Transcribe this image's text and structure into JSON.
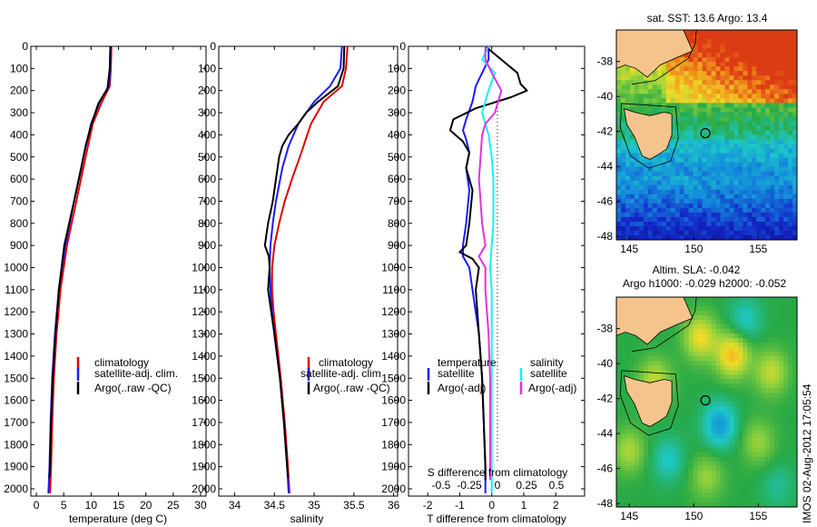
{
  "colors": {
    "climatology": "#e00000",
    "satellite": "#1a1aff",
    "argo": "#000000",
    "s_satellite": "#19f0f0",
    "s_argo": "#e032e0",
    "land": "#f5c48c"
  },
  "stamp": "IMOS 02-Aug-2012 17:05:54",
  "chart_data": [
    {
      "type": "line",
      "id": "temperature",
      "xlabel": "temperature (deg C)",
      "ylabel": "",
      "xlim": [
        -1,
        31
      ],
      "ylim": [
        0,
        2050
      ],
      "x_ticks": [
        0,
        5,
        10,
        15,
        20,
        25,
        30
      ],
      "y_ticks": [
        0,
        100,
        200,
        300,
        400,
        500,
        600,
        700,
        800,
        900,
        1000,
        1100,
        1200,
        1300,
        1400,
        1500,
        1600,
        1700,
        1800,
        1900,
        2000
      ],
      "legend": [
        "climatology",
        "satellite-adj. clim.",
        "Argo(..raw -QC)"
      ],
      "series": [
        {
          "name": "climatology",
          "depth": [
            0,
            100,
            180,
            250,
            350,
            500,
            700,
            900,
            1100,
            1300,
            1500,
            1700,
            1900,
            2020
          ],
          "values": [
            13.7,
            13.6,
            13.4,
            12.0,
            10.3,
            9.0,
            7.3,
            5.6,
            4.4,
            3.7,
            3.2,
            2.9,
            2.7,
            2.5
          ]
        },
        {
          "name": "satellite-adj. clim.",
          "depth": [
            0,
            100,
            180,
            250,
            350,
            500,
            700,
            900,
            1100,
            1300,
            1500,
            1700,
            1900,
            2020
          ],
          "values": [
            13.6,
            13.5,
            13.3,
            11.6,
            10.0,
            8.6,
            6.9,
            5.3,
            4.1,
            3.4,
            2.9,
            2.6,
            2.4,
            2.2
          ]
        },
        {
          "name": "Argo(..raw -QC)",
          "depth": [
            0,
            100,
            190,
            260,
            350,
            450,
            550,
            700,
            900,
            1000,
            1100,
            1300,
            1500,
            1700,
            1900,
            1950
          ],
          "values": [
            13.5,
            13.4,
            13.0,
            11.3,
            10.1,
            9.0,
            8.2,
            6.9,
            5.1,
            4.6,
            4.1,
            3.5,
            3.0,
            2.7,
            2.5,
            2.4
          ]
        }
      ]
    },
    {
      "type": "line",
      "id": "salinity",
      "xlabel": "salinity",
      "ylabel": "",
      "xlim": [
        33.8,
        36.05
      ],
      "ylim": [
        0,
        2050
      ],
      "x_ticks": [
        34,
        34.5,
        35,
        35.5,
        36
      ],
      "legend": [
        "climatology",
        "satellite-adj. clim",
        "Argo(..raw -QC)"
      ],
      "series": [
        {
          "name": "climatology",
          "depth": [
            0,
            100,
            180,
            250,
            350,
            500,
            600,
            700,
            800,
            900,
            1000,
            1100,
            1200,
            1300,
            1500,
            1700,
            1900,
            2020
          ],
          "values": [
            35.42,
            35.4,
            35.35,
            35.12,
            34.96,
            34.82,
            34.72,
            34.63,
            34.56,
            34.5,
            34.47,
            34.47,
            34.49,
            34.52,
            34.58,
            34.63,
            34.67,
            34.69
          ]
        },
        {
          "name": "satellite-adj. clim",
          "depth": [
            0,
            100,
            180,
            250,
            350,
            450,
            550,
            700,
            800,
            900,
            1000,
            1100,
            1200,
            1300,
            1500,
            1700,
            1900,
            2020
          ],
          "values": [
            35.35,
            35.33,
            35.2,
            35.0,
            34.8,
            34.68,
            34.6,
            34.52,
            34.48,
            34.45,
            34.44,
            34.45,
            34.47,
            34.5,
            34.57,
            34.62,
            34.66,
            34.68
          ]
        },
        {
          "name": "Argo(..raw -QC)",
          "depth": [
            0,
            100,
            180,
            250,
            300,
            350,
            400,
            450,
            500,
            600,
            700,
            800,
            850,
            900,
            950,
            1000,
            1100,
            1200,
            1300,
            1500,
            1700,
            1900,
            1950
          ],
          "values": [
            35.38,
            35.37,
            35.3,
            35.05,
            34.9,
            34.8,
            34.68,
            34.6,
            34.56,
            34.52,
            34.48,
            34.42,
            34.4,
            34.38,
            34.43,
            34.44,
            34.42,
            34.46,
            34.5,
            34.57,
            34.62,
            34.66,
            34.67
          ]
        }
      ]
    },
    {
      "type": "line",
      "id": "difference",
      "xlabel": "T difference from climatology",
      "xlabel_top": "S difference from climatology",
      "xlim": [
        -2.6,
        2.9
      ],
      "ylim": [
        0,
        2050
      ],
      "x_ticks": [
        -2,
        -1,
        0,
        1,
        2
      ],
      "s_ticks": [
        "-0.5",
        "-0.25",
        "0",
        "0.25",
        "0.5"
      ],
      "legend_left_title": "temperature",
      "legend_right_title": "salinity",
      "legend_left": [
        "satellite",
        "Argo(-adj)"
      ],
      "legend_right": [
        "satellite",
        "Argo(-adj)"
      ],
      "series": [
        {
          "name": "T satellite",
          "depth": [
            0,
            60,
            120,
            180,
            250,
            330,
            380,
            420,
            480,
            550,
            650,
            800,
            900,
            950,
            1000,
            1100,
            1300,
            1500,
            1700,
            1900,
            2020
          ],
          "values": [
            -0.1,
            -0.1,
            -0.3,
            -0.5,
            -0.6,
            -0.8,
            -0.9,
            -0.8,
            -0.7,
            -0.8,
            -0.7,
            -0.8,
            -0.9,
            -0.9,
            -0.7,
            -0.6,
            -0.4,
            -0.3,
            -0.25,
            -0.2,
            -0.2
          ]
        },
        {
          "name": "T Argo(-adj)",
          "depth": [
            0,
            60,
            120,
            170,
            200,
            230,
            280,
            330,
            380,
            430,
            480,
            550,
            650,
            800,
            900,
            930,
            960,
            1000,
            1100,
            1300,
            1500,
            1700,
            1900,
            1960
          ],
          "values": [
            -0.2,
            0.3,
            0.8,
            0.9,
            1.1,
            0.6,
            -0.5,
            -1.2,
            -1.3,
            -0.9,
            -0.7,
            -0.8,
            -0.6,
            -0.7,
            -0.8,
            -1.0,
            -0.6,
            -0.4,
            -0.5,
            -0.4,
            -0.3,
            -0.25,
            -0.2,
            -0.2
          ]
        },
        {
          "name": "S satellite",
          "depth": [
            0,
            60,
            120,
            200,
            300,
            400,
            500,
            600,
            700,
            800,
            900,
            1000,
            1100,
            1300,
            1500,
            1700,
            1900,
            2020
          ],
          "values": [
            -0.1,
            -0.3,
            0.1,
            -0.1,
            -0.3,
            -0.1,
            0.0,
            0.05,
            0.05,
            0.05,
            0.0,
            -0.05,
            0.0,
            0.0,
            0.0,
            0.0,
            0.0,
            0.0
          ]
        },
        {
          "name": "S Argo(-adj)",
          "depth": [
            0,
            60,
            120,
            200,
            300,
            350,
            400,
            500,
            600,
            700,
            800,
            900,
            950,
            1000,
            1100,
            1200,
            1300,
            1500,
            1700,
            1900,
            1960
          ],
          "values": [
            -0.2,
            -0.2,
            0.0,
            0.3,
            0.1,
            -0.2,
            -0.3,
            -0.35,
            -0.4,
            -0.35,
            -0.3,
            -0.2,
            -0.4,
            -0.2,
            -0.2,
            -0.15,
            -0.1,
            -0.05,
            -0.05,
            -0.05,
            -0.05
          ]
        }
      ]
    },
    {
      "type": "heatmap",
      "id": "sst-map",
      "title": "sat. SST: 13.6 Argo: 13.4",
      "x_ticks": [
        145,
        150,
        155
      ],
      "y_ticks": [
        -38,
        -40,
        -42,
        -44,
        -46,
        -48
      ],
      "xlim": [
        144,
        158
      ],
      "ylim": [
        -48.2,
        -36.2
      ],
      "marker": {
        "lon": 150.9,
        "lat": -42.1
      }
    },
    {
      "type": "heatmap",
      "id": "sla-map",
      "title": "Altim. SLA: -0.042",
      "subtitle": "Argo h1000: -0.029 h2000: -0.052",
      "x_ticks": [
        145,
        150,
        155
      ],
      "y_ticks": [
        -38,
        -40,
        -42,
        -44,
        -46,
        -48
      ],
      "xlim": [
        144,
        158
      ],
      "ylim": [
        -48.2,
        -36.2
      ],
      "marker": {
        "lon": 150.9,
        "lat": -42.1
      }
    }
  ]
}
